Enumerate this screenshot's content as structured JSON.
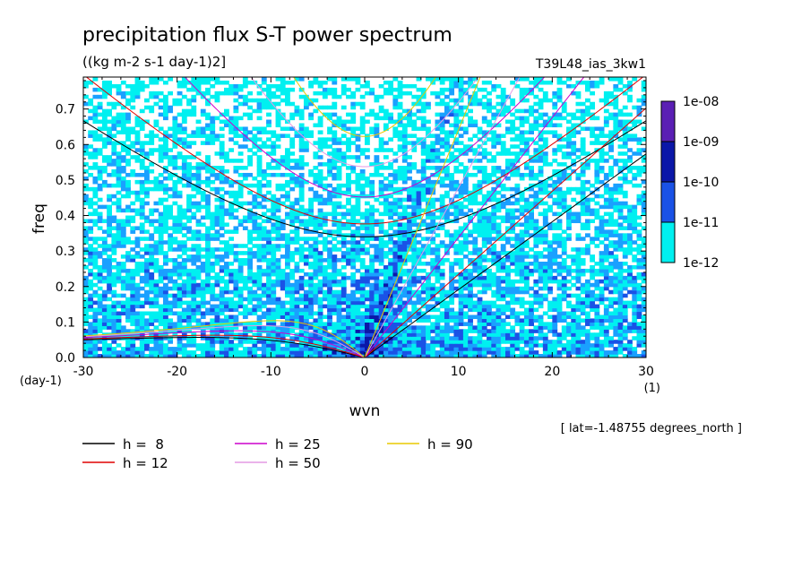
{
  "chart_data": {
    "type": "heatmap",
    "title": "precipitation flux S-T power spectrum",
    "subtitle": "((kg m-2 s-1 day-1)2]",
    "dataset": "T39L48_ias_3kw1",
    "xlabel": "wvn",
    "ylabel": "freq",
    "xunits": "(1)",
    "yunits": "(day-1)",
    "footnote": "[ lat=-1.48755 degrees_north ]",
    "xlim": [
      -30,
      30
    ],
    "ylim": [
      0,
      0.79
    ],
    "xticks": [
      "-30",
      "-20",
      "-10",
      "0",
      "10",
      "20",
      "30"
    ],
    "yticks": [
      "0.0",
      "0.1",
      "0.2",
      "0.3",
      "0.4",
      "0.5",
      "0.6",
      "0.7"
    ],
    "colorbar": {
      "labels": [
        "1e-08",
        "1e-09",
        "1e-10",
        "1e-11",
        "1e-12"
      ],
      "colors": [
        "#5a1fb4",
        "#0b17a8",
        "#1a52e6",
        "#1aa0ff",
        "#00f0f0"
      ]
    },
    "legend": [
      {
        "label": "h =  8",
        "color": "#000000"
      },
      {
        "label": "h = 12",
        "color": "#e00000"
      },
      {
        "label": "h = 25",
        "color": "#cc00cc"
      },
      {
        "label": "h = 50",
        "color": "#e49ae4"
      },
      {
        "label": "h = 90",
        "color": "#e8c800"
      }
    ],
    "dispersion_h": [
      8,
      12,
      25,
      50,
      90
    ],
    "legend_placement": "bottom-left"
  }
}
